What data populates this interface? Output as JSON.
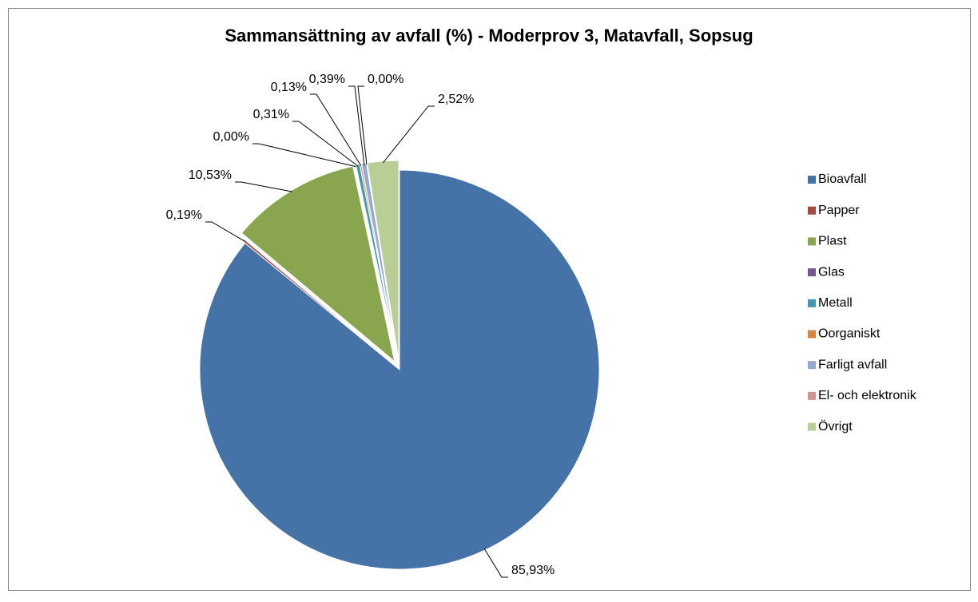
{
  "chart_data": {
    "type": "pie",
    "title": "Sammansättning av avfall (%) - Moderprov 3, Matavfall, Sopsug",
    "categories": [
      "Bioavfall",
      "Papper",
      "Plast",
      "Glas",
      "Metall",
      "Oorganiskt",
      "Farligt avfall",
      "El- och elektronik",
      "Övrigt"
    ],
    "values": [
      85.93,
      0.19,
      10.53,
      0.0,
      0.31,
      0.13,
      0.39,
      0.0,
      2.52
    ],
    "value_labels": [
      "85,93%",
      "0,19%",
      "10,53%",
      "0,00%",
      "0,31%",
      "0,13%",
      "0,39%",
      "0,00%",
      "2,52%"
    ],
    "colors": [
      "#4572a7",
      "#aa4643",
      "#89a54e",
      "#71588f",
      "#4198af",
      "#db843d",
      "#93a9cf",
      "#d19392",
      "#b9cd96"
    ],
    "legend": "right"
  }
}
